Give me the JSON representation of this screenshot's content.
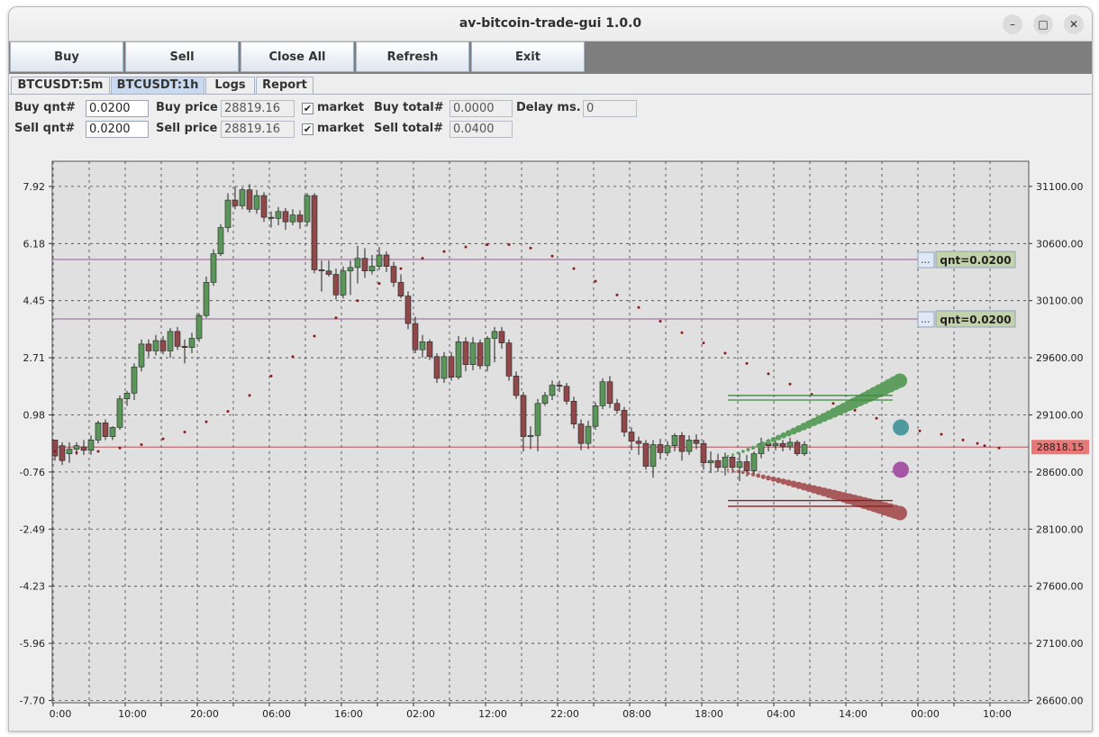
{
  "window": {
    "title": "av-bitcoin-trade-gui 1.0.0"
  },
  "window_controls": {
    "minimize": "–",
    "maximize": "□",
    "close": "✕"
  },
  "toolbar": {
    "buttons": [
      "Buy",
      "Sell",
      "Close All",
      "Refresh",
      "Exit"
    ]
  },
  "tabs": {
    "items": [
      "BTCUSDT:5m",
      "BTCUSDT:1h",
      "Logs",
      "Report"
    ],
    "selected": "BTCUSDT:1h"
  },
  "form": {
    "buy_qnt_label": "Buy qnt#",
    "buy_qnt": "0.0200",
    "buy_price_label": "Buy price",
    "buy_price": "28819.16",
    "buy_market_label": "market",
    "buy_market_checked": true,
    "buy_total_label": "Buy total#",
    "buy_total": "0.0000",
    "delay_label": "Delay ms.",
    "delay": "0",
    "sell_qnt_label": "Sell qnt#",
    "sell_qnt": "0.0200",
    "sell_price_label": "Sell price",
    "sell_price": "28819.16",
    "sell_market_label": "market",
    "sell_market_checked": true,
    "sell_total_label": "Sell total#",
    "sell_total": "0.0400"
  },
  "chart_data": {
    "type": "candlestick",
    "title": "",
    "left_axis": {
      "ticks": [
        "7.92",
        "6.18",
        "4.45",
        "2.71",
        "0.98",
        "-0.76",
        "-2.49",
        "-4.23",
        "-5.96",
        "-7.70"
      ]
    },
    "right_axis": {
      "ticks": [
        "31100.00",
        "30600.00",
        "30100.00",
        "29600.00",
        "29100.00",
        "28600.00",
        "28100.00",
        "27600.00",
        "27100.00",
        "26600.00"
      ],
      "ylim": [
        26580,
        31320
      ]
    },
    "x_axis": {
      "ticks": [
        "0:00",
        "10:00",
        "20:00",
        "06:00",
        "16:00",
        "02:00",
        "12:00",
        "22:00",
        "08:00",
        "18:00",
        "04:00",
        "14:00",
        "00:00",
        "10:00"
      ]
    },
    "current_price_label": "28818.15",
    "current_price": 28818.15,
    "order_levels": [
      {
        "price": 30460,
        "label": "qnt=0.0200"
      },
      {
        "price": 29940,
        "label": "qnt=0.0200"
      }
    ],
    "order_button_label": "...",
    "candles": [
      [
        28880,
        28740,
        28860,
        28700
      ],
      [
        28830,
        28700,
        28860,
        28660
      ],
      [
        28760,
        28800,
        28860,
        28680
      ],
      [
        28800,
        28830,
        28860,
        28750
      ],
      [
        28820,
        28790,
        28880,
        28750
      ],
      [
        28790,
        28880,
        28920,
        28750
      ],
      [
        28880,
        29030,
        29050,
        28850
      ],
      [
        29030,
        28910,
        29060,
        28880
      ],
      [
        28910,
        28990,
        29000,
        28880
      ],
      [
        28990,
        29240,
        29270,
        28970
      ],
      [
        29240,
        29290,
        29310,
        29180
      ],
      [
        29290,
        29520,
        29550,
        29230
      ],
      [
        29520,
        29720,
        29760,
        29480
      ],
      [
        29720,
        29660,
        29760,
        29610
      ],
      [
        29660,
        29750,
        29800,
        29620
      ],
      [
        29750,
        29660,
        29790,
        29630
      ],
      [
        29660,
        29830,
        29860,
        29600
      ],
      [
        29830,
        29700,
        29870,
        29670
      ],
      [
        29700,
        29690,
        29760,
        29550
      ],
      [
        29690,
        29770,
        29820,
        29640
      ],
      [
        29770,
        29970,
        29990,
        29740
      ],
      [
        29970,
        30260,
        30310,
        29950
      ],
      [
        30260,
        30510,
        30550,
        30230
      ],
      [
        30510,
        30740,
        30770,
        30490
      ],
      [
        30740,
        30980,
        31040,
        30700
      ],
      [
        30980,
        30930,
        31100,
        30900
      ],
      [
        30930,
        31070,
        31090,
        30900
      ],
      [
        31070,
        30900,
        31120,
        30870
      ],
      [
        30900,
        31020,
        31070,
        30860
      ],
      [
        31020,
        30830,
        31050,
        30790
      ],
      [
        30830,
        30820,
        30880,
        30740
      ],
      [
        30820,
        30880,
        30920,
        30760
      ],
      [
        30880,
        30790,
        30910,
        30720
      ],
      [
        30790,
        30850,
        30900,
        30760
      ],
      [
        30850,
        30790,
        30890,
        30730
      ],
      [
        30790,
        31020,
        31040,
        30750
      ],
      [
        31020,
        30370,
        31040,
        30340
      ],
      [
        30370,
        30360,
        30450,
        30180
      ],
      [
        30360,
        30330,
        30450,
        30310
      ],
      [
        30330,
        30150,
        30380,
        30110
      ],
      [
        30150,
        30360,
        30400,
        30120
      ],
      [
        30360,
        30390,
        30450,
        30150
      ],
      [
        30390,
        30470,
        30580,
        30250
      ],
      [
        30470,
        30360,
        30560,
        30300
      ],
      [
        30360,
        30400,
        30500,
        30330
      ],
      [
        30400,
        30500,
        30570,
        30370
      ],
      [
        30500,
        30400,
        30530,
        30350
      ],
      [
        30400,
        30260,
        30440,
        30220
      ],
      [
        30260,
        30140,
        30330,
        30120
      ],
      [
        30140,
        29900,
        30180,
        29850
      ],
      [
        29900,
        29670,
        29960,
        29640
      ],
      [
        29670,
        29740,
        29800,
        29600
      ],
      [
        29740,
        29610,
        29760,
        29580
      ],
      [
        29610,
        29420,
        29640,
        29380
      ],
      [
        29420,
        29610,
        29650,
        29380
      ],
      [
        29610,
        29430,
        29650,
        29400
      ],
      [
        29430,
        29740,
        29790,
        29410
      ],
      [
        29740,
        29540,
        29780,
        29480
      ],
      [
        29540,
        29730,
        29780,
        29490
      ],
      [
        29730,
        29530,
        29760,
        29500
      ],
      [
        29530,
        29770,
        29790,
        29480
      ],
      [
        29770,
        29830,
        29870,
        29560
      ],
      [
        29830,
        29730,
        29870,
        29680
      ],
      [
        29730,
        29440,
        29760,
        29400
      ],
      [
        29440,
        29270,
        29480,
        29240
      ],
      [
        29270,
        28910,
        29300,
        28780
      ],
      [
        28910,
        28920,
        29000,
        28800
      ],
      [
        28920,
        29200,
        29240,
        28780
      ],
      [
        29200,
        29270,
        29300,
        29180
      ],
      [
        29270,
        29360,
        29400,
        29230
      ],
      [
        29360,
        29350,
        29400,
        29300
      ],
      [
        29350,
        29220,
        29380,
        29190
      ],
      [
        29220,
        29020,
        29260,
        28980
      ],
      [
        29020,
        28850,
        29060,
        28790
      ],
      [
        28850,
        29000,
        29050,
        28800
      ],
      [
        29000,
        29180,
        29210,
        28970
      ],
      [
        29180,
        29390,
        29420,
        29150
      ],
      [
        29390,
        29200,
        29440,
        29160
      ],
      [
        29200,
        29140,
        29240,
        29110
      ],
      [
        29140,
        28950,
        29170,
        28910
      ],
      [
        28950,
        28870,
        28990,
        28790
      ],
      [
        28870,
        28850,
        28910,
        28750
      ],
      [
        28850,
        28650,
        28880,
        28620
      ],
      [
        28650,
        28840,
        28880,
        28550
      ],
      [
        28840,
        28770,
        28890,
        28710
      ],
      [
        28770,
        28830,
        28870,
        28740
      ],
      [
        28830,
        28920,
        28940,
        28780
      ],
      [
        28920,
        28780,
        28950,
        28700
      ],
      [
        28780,
        28880,
        28920,
        28750
      ],
      [
        28880,
        28850,
        28930,
        28800
      ],
      [
        28850,
        28680,
        28880,
        28620
      ],
      [
        28680,
        28700,
        28780,
        28590
      ],
      [
        28700,
        28640,
        28760,
        28600
      ],
      [
        28640,
        28730,
        28770,
        28570
      ],
      [
        28730,
        28640,
        28760,
        28590
      ],
      [
        28640,
        28690,
        28770,
        28520
      ],
      [
        28690,
        28610,
        28750,
        28560
      ],
      [
        28610,
        28760,
        28780,
        28570
      ],
      [
        28760,
        28850,
        28900,
        28720
      ],
      [
        28850,
        28830,
        28890,
        28780
      ],
      [
        28830,
        28850,
        28900,
        28790
      ],
      [
        28850,
        28820,
        28880,
        28780
      ],
      [
        28820,
        28860,
        28900,
        28790
      ],
      [
        28860,
        28760,
        28880,
        28740
      ],
      [
        28760,
        28840,
        28870,
        28740
      ]
    ],
    "buy_fan_start": 28740,
    "buy_fan_end": 29400,
    "sell_fan_start": 28620,
    "sell_fan_end": 28240,
    "buy_lines": [
      29270,
      29230
    ],
    "sell_lines": [
      28350,
      28300
    ],
    "markers": [
      {
        "price": 28990,
        "color": "#4e9aa0"
      },
      {
        "price": 28620,
        "color": "#a556a5"
      }
    ],
    "ma_points": [
      [
        0,
        28780
      ],
      [
        3,
        28770
      ],
      [
        6,
        28780
      ],
      [
        9,
        28810
      ],
      [
        12,
        28840
      ],
      [
        15,
        28890
      ],
      [
        18,
        28950
      ],
      [
        21,
        29040
      ],
      [
        24,
        29130
      ],
      [
        27,
        29270
      ],
      [
        30,
        29440
      ],
      [
        33,
        29610
      ],
      [
        36,
        29790
      ],
      [
        39,
        29950
      ],
      [
        42,
        30100
      ],
      [
        45,
        30250
      ],
      [
        48,
        30380
      ],
      [
        51,
        30470
      ],
      [
        54,
        30530
      ],
      [
        57,
        30570
      ],
      [
        60,
        30590
      ],
      [
        63,
        30590
      ],
      [
        66,
        30560
      ],
      [
        69,
        30490
      ],
      [
        72,
        30380
      ],
      [
        75,
        30270
      ],
      [
        78,
        30150
      ],
      [
        81,
        30040
      ],
      [
        84,
        29920
      ],
      [
        87,
        29820
      ],
      [
        90,
        29730
      ],
      [
        93,
        29640
      ],
      [
        96,
        29550
      ],
      [
        99,
        29460
      ],
      [
        102,
        29370
      ],
      [
        105,
        29280
      ],
      [
        108,
        29200
      ],
      [
        111,
        29140
      ],
      [
        114,
        29070
      ],
      [
        117,
        29010
      ],
      [
        120,
        28960
      ],
      [
        123,
        28930
      ],
      [
        126,
        28880
      ],
      [
        128,
        28850
      ],
      [
        129,
        28830
      ],
      [
        131,
        28810
      ]
    ],
    "colors": {
      "up": "#5a9658",
      "down": "#904848",
      "ma": "#8b1a1a",
      "order_line": "#9a5a9a",
      "price_line": "#b04040",
      "grid": "#404040",
      "price_tag": "#e87878"
    }
  }
}
